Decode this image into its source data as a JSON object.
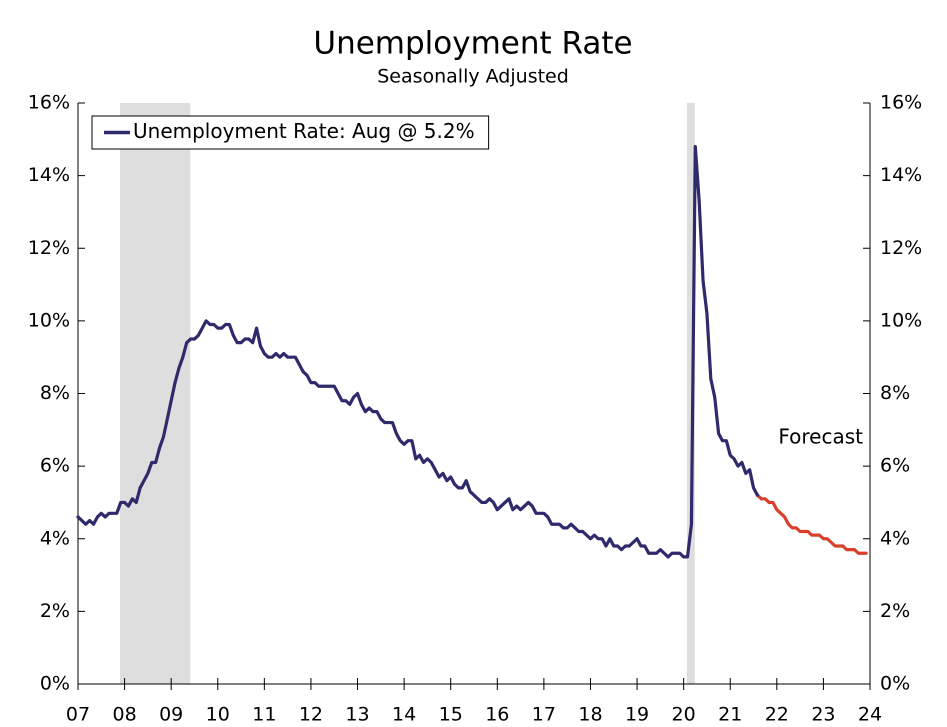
{
  "chart_data": {
    "type": "line",
    "title": "Unemployment Rate",
    "subtitle": "Seasonally Adjusted",
    "annotation": "Forecast",
    "xlim": [
      2007,
      2024
    ],
    "xticks": [
      {
        "value": 2007,
        "label": "07"
      },
      {
        "value": 2008,
        "label": "08"
      },
      {
        "value": 2009,
        "label": "09"
      },
      {
        "value": 2010,
        "label": "10"
      },
      {
        "value": 2011,
        "label": "11"
      },
      {
        "value": 2012,
        "label": "12"
      },
      {
        "value": 2013,
        "label": "13"
      },
      {
        "value": 2014,
        "label": "14"
      },
      {
        "value": 2015,
        "label": "15"
      },
      {
        "value": 2016,
        "label": "16"
      },
      {
        "value": 2017,
        "label": "17"
      },
      {
        "value": 2018,
        "label": "18"
      },
      {
        "value": 2019,
        "label": "19"
      },
      {
        "value": 2020,
        "label": "20"
      },
      {
        "value": 2021,
        "label": "21"
      },
      {
        "value": 2022,
        "label": "22"
      },
      {
        "value": 2023,
        "label": "23"
      },
      {
        "value": 2024,
        "label": "24"
      }
    ],
    "ylim": [
      0,
      16
    ],
    "yticks": [
      {
        "value": 0,
        "label": "0%"
      },
      {
        "value": 2,
        "label": "2%"
      },
      {
        "value": 4,
        "label": "4%"
      },
      {
        "value": 6,
        "label": "6%"
      },
      {
        "value": 8,
        "label": "8%"
      },
      {
        "value": 10,
        "label": "10%"
      },
      {
        "value": 12,
        "label": "12%"
      },
      {
        "value": 14,
        "label": "14%"
      },
      {
        "value": 16,
        "label": "16%"
      }
    ],
    "shaded_ranges": [
      [
        2007.9,
        2009.41
      ],
      [
        2020.07,
        2020.24
      ]
    ],
    "shade_color": "#dedede",
    "legend": "upper left",
    "series": [
      {
        "name": "Unemployment Rate: Aug @ 5.2%",
        "color": "#2e2a6b",
        "x": [
          2007,
          2007.083,
          2007.167,
          2007.25,
          2007.333,
          2007.417,
          2007.5,
          2007.583,
          2007.667,
          2007.75,
          2007.833,
          2007.917,
          2008,
          2008.083,
          2008.167,
          2008.25,
          2008.333,
          2008.417,
          2008.5,
          2008.583,
          2008.667,
          2008.75,
          2008.833,
          2008.917,
          2009,
          2009.083,
          2009.167,
          2009.25,
          2009.333,
          2009.417,
          2009.5,
          2009.583,
          2009.667,
          2009.75,
          2009.833,
          2009.917,
          2010,
          2010.083,
          2010.167,
          2010.25,
          2010.333,
          2010.417,
          2010.5,
          2010.583,
          2010.667,
          2010.75,
          2010.833,
          2010.917,
          2011,
          2011.083,
          2011.167,
          2011.25,
          2011.333,
          2011.417,
          2011.5,
          2011.583,
          2011.667,
          2011.75,
          2011.833,
          2011.917,
          2012,
          2012.083,
          2012.167,
          2012.25,
          2012.333,
          2012.417,
          2012.5,
          2012.583,
          2012.667,
          2012.75,
          2012.833,
          2012.917,
          2013,
          2013.083,
          2013.167,
          2013.25,
          2013.333,
          2013.417,
          2013.5,
          2013.583,
          2013.667,
          2013.75,
          2013.833,
          2013.917,
          2014,
          2014.083,
          2014.167,
          2014.25,
          2014.333,
          2014.417,
          2014.5,
          2014.583,
          2014.667,
          2014.75,
          2014.833,
          2014.917,
          2015,
          2015.083,
          2015.167,
          2015.25,
          2015.333,
          2015.417,
          2015.5,
          2015.583,
          2015.667,
          2015.75,
          2015.833,
          2015.917,
          2016,
          2016.083,
          2016.167,
          2016.25,
          2016.333,
          2016.417,
          2016.5,
          2016.583,
          2016.667,
          2016.75,
          2016.833,
          2016.917,
          2017,
          2017.083,
          2017.167,
          2017.25,
          2017.333,
          2017.417,
          2017.5,
          2017.583,
          2017.667,
          2017.75,
          2017.833,
          2017.917,
          2018,
          2018.083,
          2018.167,
          2018.25,
          2018.333,
          2018.417,
          2018.5,
          2018.583,
          2018.667,
          2018.75,
          2018.833,
          2018.917,
          2019,
          2019.083,
          2019.167,
          2019.25,
          2019.333,
          2019.417,
          2019.5,
          2019.583,
          2019.667,
          2019.75,
          2019.833,
          2019.917,
          2020,
          2020.083,
          2020.167,
          2020.25,
          2020.333,
          2020.417,
          2020.5,
          2020.583,
          2020.667,
          2020.75,
          2020.833,
          2020.917,
          2021,
          2021.083,
          2021.167,
          2021.25,
          2021.333,
          2021.417,
          2021.5,
          2021.583
        ],
        "values": [
          4.6,
          4.5,
          4.4,
          4.5,
          4.4,
          4.6,
          4.7,
          4.6,
          4.7,
          4.7,
          4.7,
          5.0,
          5.0,
          4.9,
          5.1,
          5.0,
          5.4,
          5.6,
          5.8,
          6.1,
          6.1,
          6.5,
          6.8,
          7.3,
          7.8,
          8.3,
          8.7,
          9.0,
          9.4,
          9.5,
          9.5,
          9.6,
          9.8,
          10.0,
          9.9,
          9.9,
          9.8,
          9.8,
          9.9,
          9.9,
          9.6,
          9.4,
          9.4,
          9.5,
          9.5,
          9.4,
          9.8,
          9.3,
          9.1,
          9.0,
          9.0,
          9.1,
          9.0,
          9.1,
          9.0,
          9.0,
          9.0,
          8.8,
          8.6,
          8.5,
          8.3,
          8.3,
          8.2,
          8.2,
          8.2,
          8.2,
          8.2,
          8.0,
          7.8,
          7.8,
          7.7,
          7.9,
          8.0,
          7.7,
          7.5,
          7.6,
          7.5,
          7.5,
          7.3,
          7.2,
          7.2,
          7.2,
          6.9,
          6.7,
          6.6,
          6.7,
          6.7,
          6.2,
          6.3,
          6.1,
          6.2,
          6.1,
          5.9,
          5.7,
          5.8,
          5.6,
          5.7,
          5.5,
          5.4,
          5.4,
          5.6,
          5.3,
          5.2,
          5.1,
          5.0,
          5.0,
          5.1,
          5.0,
          4.8,
          4.9,
          5.0,
          5.1,
          4.8,
          4.9,
          4.8,
          4.9,
          5.0,
          4.9,
          4.7,
          4.7,
          4.7,
          4.6,
          4.4,
          4.4,
          4.4,
          4.3,
          4.3,
          4.4,
          4.3,
          4.2,
          4.2,
          4.1,
          4.0,
          4.1,
          4.0,
          4.0,
          3.8,
          4.0,
          3.8,
          3.8,
          3.7,
          3.8,
          3.8,
          3.9,
          4.0,
          3.8,
          3.8,
          3.6,
          3.6,
          3.6,
          3.7,
          3.6,
          3.5,
          3.6,
          3.6,
          3.6,
          3.5,
          3.5,
          4.4,
          14.8,
          13.3,
          11.1,
          10.2,
          8.4,
          7.9,
          6.9,
          6.7,
          6.7,
          6.3,
          6.2,
          6.0,
          6.1,
          5.8,
          5.9,
          5.4,
          5.2
        ]
      },
      {
        "color": "#d9402b",
        "x": [
          2021.667,
          2021.75,
          2021.833,
          2021.917,
          2022,
          2022.083,
          2022.167,
          2022.25,
          2022.333,
          2022.417,
          2022.5,
          2022.583,
          2022.667,
          2022.75,
          2022.833,
          2022.917,
          2023,
          2023.083,
          2023.167,
          2023.25,
          2023.333,
          2023.417,
          2023.5,
          2023.583,
          2023.667,
          2023.75,
          2023.833,
          2023.917
        ],
        "values": [
          5.1,
          5.1,
          5.0,
          5.0,
          4.8,
          4.7,
          4.6,
          4.4,
          4.3,
          4.3,
          4.2,
          4.2,
          4.2,
          4.1,
          4.1,
          4.1,
          4.0,
          4.0,
          3.9,
          3.8,
          3.8,
          3.8,
          3.7,
          3.7,
          3.7,
          3.6,
          3.6,
          3.6
        ]
      }
    ]
  }
}
